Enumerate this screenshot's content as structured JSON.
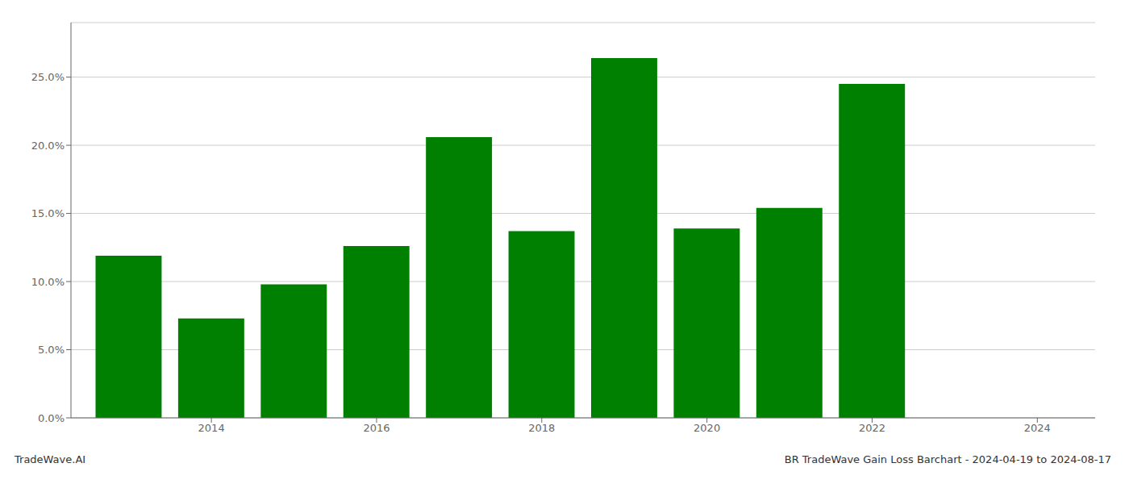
{
  "chart_data": {
    "type": "bar",
    "x": [
      2013,
      2014,
      2015,
      2016,
      2017,
      2018,
      2019,
      2020,
      2021,
      2022
    ],
    "values": [
      0.119,
      0.073,
      0.098,
      0.126,
      0.206,
      0.137,
      0.264,
      0.139,
      0.154,
      0.245
    ],
    "color": "#008000",
    "xlim": [
      2012.3,
      2024.7
    ],
    "xticks": [
      2014,
      2016,
      2018,
      2020,
      2022,
      2024
    ],
    "ylim": [
      0,
      0.29
    ],
    "yticks": [
      {
        "value": 0.0,
        "label": "0.0%"
      },
      {
        "value": 0.05,
        "label": "5.0%"
      },
      {
        "value": 0.1,
        "label": "10.0%"
      },
      {
        "value": 0.15,
        "label": "15.0%"
      },
      {
        "value": 0.2,
        "label": "20.0%"
      },
      {
        "value": 0.25,
        "label": "25.0%"
      }
    ],
    "grid": true,
    "annotations": [
      "TradeWave.AI",
      "BR TradeWave Gain Loss Barchart - 2024-04-19 to 2024-08-17"
    ]
  }
}
